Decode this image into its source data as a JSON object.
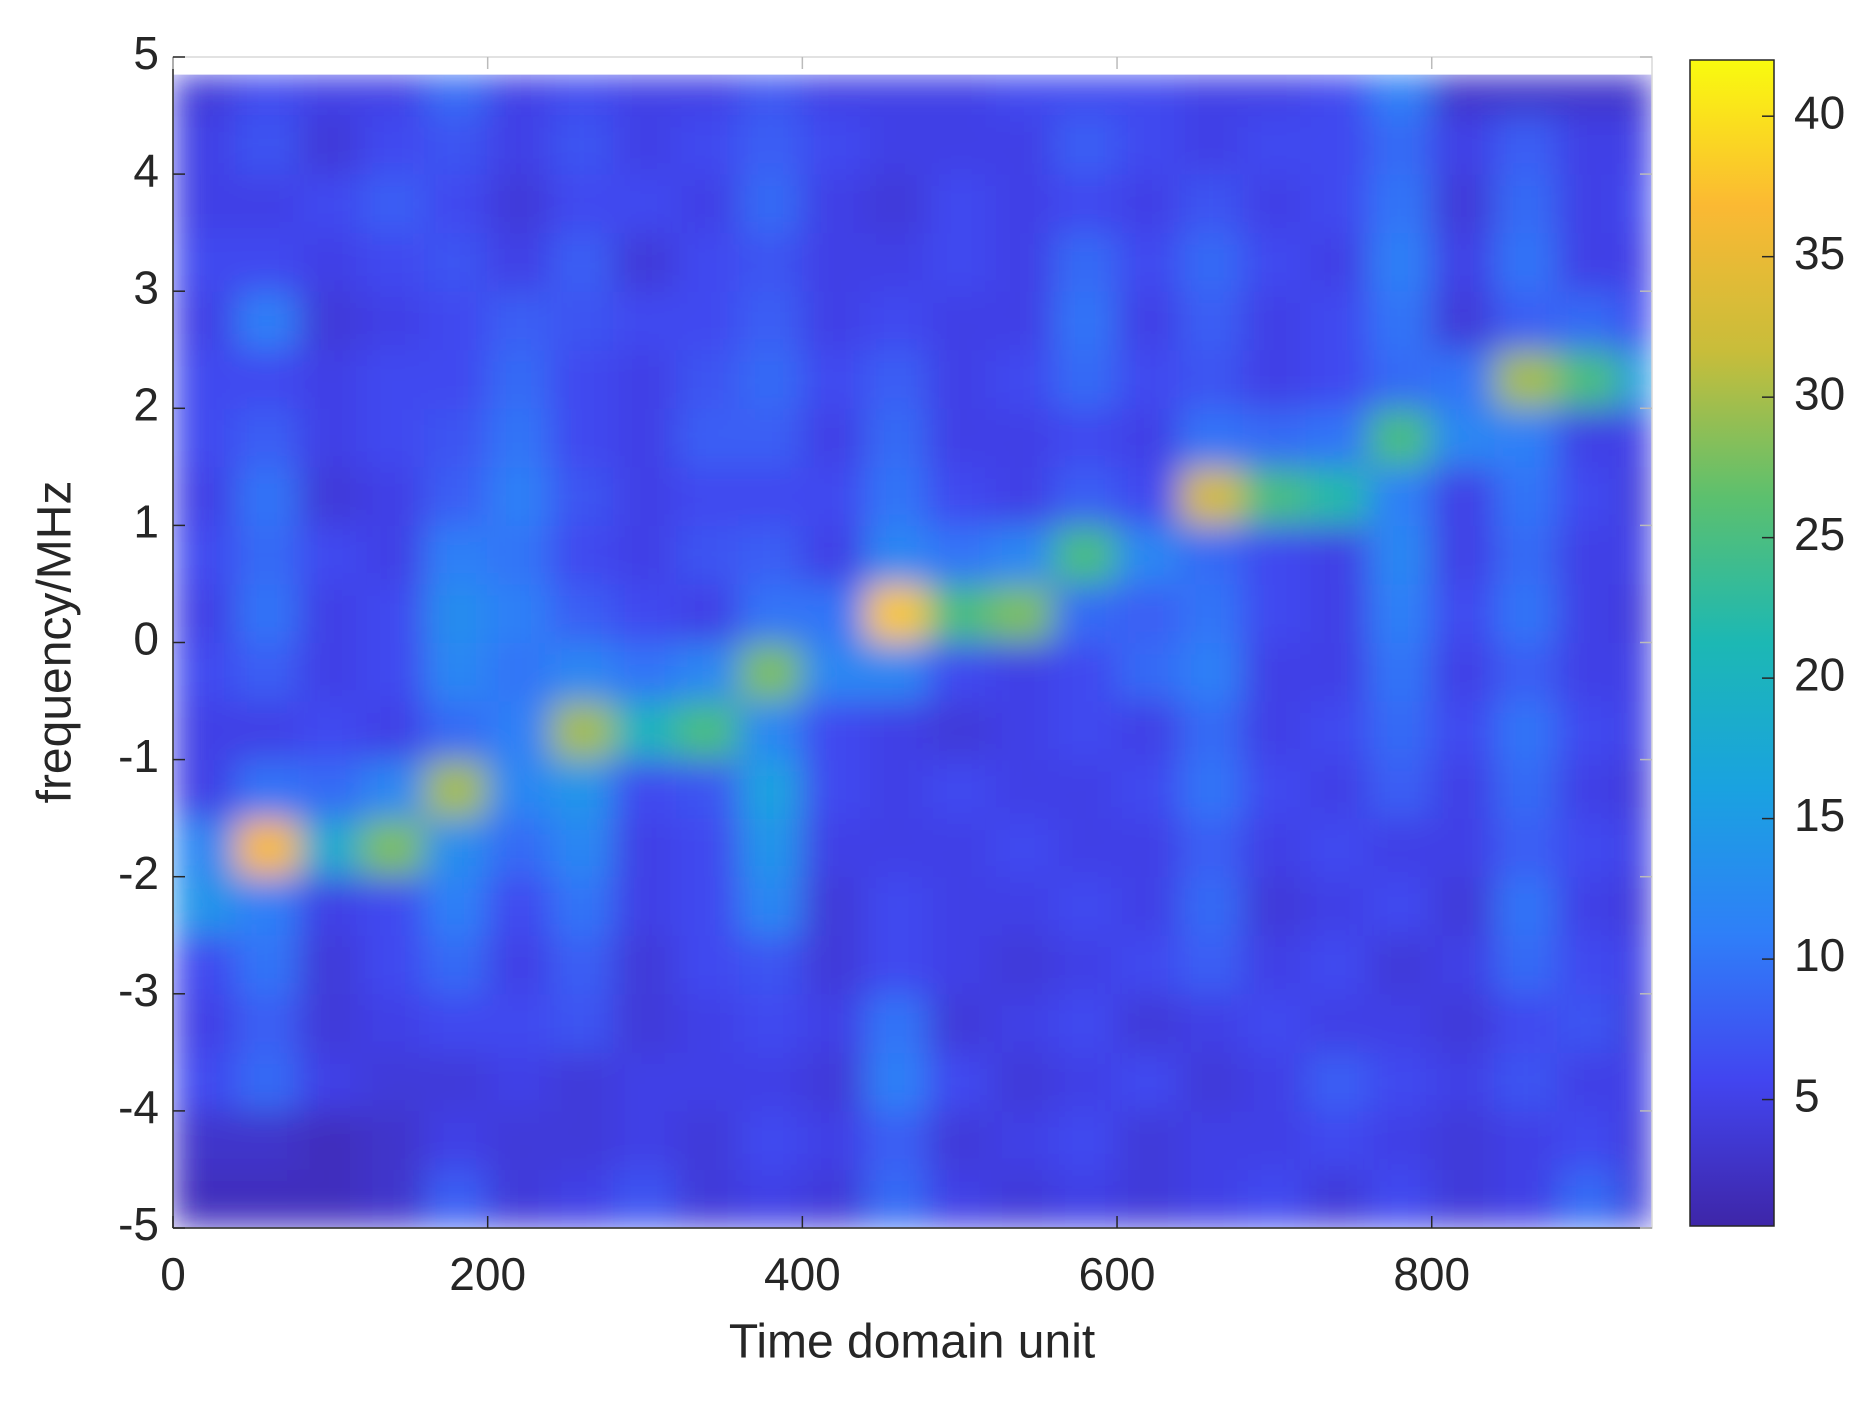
{
  "chart_data": {
    "type": "heatmap",
    "xlabel": "Time domain unit",
    "ylabel": "frequency/MHz",
    "xlim": [
      0,
      940
    ],
    "ylim": [
      -5,
      5
    ],
    "xticks": [
      0,
      200,
      400,
      600,
      800
    ],
    "yticks": [
      -5,
      -4,
      -3,
      -2,
      -1,
      0,
      1,
      2,
      3,
      4,
      5
    ],
    "xbins": [
      0,
      40,
      80,
      120,
      160,
      200,
      240,
      280,
      320,
      360,
      400,
      440,
      480,
      520,
      560,
      600,
      640,
      680,
      720,
      760,
      800,
      840,
      880,
      920,
      940
    ],
    "ybins": [
      -5,
      -4.5,
      -4,
      -3.5,
      -3,
      -2.5,
      -2,
      -1.5,
      -1,
      -0.5,
      0,
      0.5,
      1,
      1.5,
      2,
      2.5,
      3,
      3.5,
      4,
      4.5,
      4.85
    ],
    "clim": [
      0.5,
      42
    ],
    "cticks": [
      5,
      10,
      15,
      20,
      25,
      30,
      35,
      40
    ],
    "colormap": [
      "#3e26a8",
      "#4245f0",
      "#2f7ff8",
      "#1aa2e0",
      "#1cb8b4",
      "#5cc06e",
      "#c8bd3a",
      "#fbb933",
      "#f9fb0e"
    ],
    "z": [
      [
        2,
        2,
        2,
        3,
        8,
        4,
        5,
        7,
        4,
        5,
        4,
        9,
        5,
        4,
        5,
        4,
        5,
        6,
        4,
        6,
        4,
        5,
        9,
        4
      ],
      [
        3,
        3,
        2,
        3,
        5,
        4,
        4,
        5,
        4,
        6,
        5,
        8,
        4,
        5,
        6,
        4,
        5,
        5,
        6,
        5,
        4,
        5,
        6,
        4
      ],
      [
        6,
        9,
        5,
        4,
        4,
        5,
        4,
        5,
        5,
        5,
        4,
        11,
        6,
        4,
        5,
        6,
        4,
        5,
        8,
        6,
        5,
        7,
        5,
        5
      ],
      [
        5,
        8,
        4,
        5,
        6,
        6,
        7,
        4,
        5,
        6,
        5,
        10,
        4,
        5,
        6,
        4,
        5,
        6,
        5,
        5,
        4,
        6,
        7,
        4
      ],
      [
        6,
        10,
        4,
        6,
        9,
        5,
        8,
        4,
        6,
        7,
        4,
        6,
        5,
        4,
        5,
        6,
        8,
        5,
        6,
        4,
        5,
        9,
        6,
        5
      ],
      [
        14,
        11,
        5,
        6,
        11,
        6,
        10,
        5,
        6,
        12,
        4,
        6,
        5,
        5,
        6,
        5,
        9,
        4,
        5,
        6,
        4,
        10,
        5,
        4
      ],
      [
        12,
        37,
        18,
        28,
        13,
        9,
        12,
        5,
        6,
        14,
        5,
        5,
        5,
        6,
        5,
        5,
        8,
        5,
        6,
        5,
        5,
        8,
        6,
        5
      ],
      [
        5,
        10,
        9,
        12,
        30,
        12,
        14,
        6,
        7,
        16,
        6,
        5,
        6,
        5,
        5,
        6,
        10,
        6,
        5,
        8,
        5,
        9,
        5,
        4
      ],
      [
        5,
        5,
        6,
        5,
        9,
        11,
        30,
        20,
        25,
        12,
        6,
        5,
        4,
        5,
        6,
        5,
        9,
        5,
        6,
        9,
        6,
        10,
        6,
        5
      ],
      [
        6,
        8,
        5,
        6,
        12,
        10,
        12,
        10,
        12,
        28,
        12,
        12,
        6,
        5,
        6,
        9,
        11,
        5,
        5,
        10,
        5,
        8,
        5,
        5
      ],
      [
        5,
        10,
        5,
        6,
        13,
        11,
        8,
        6,
        5,
        10,
        10,
        38,
        25,
        28,
        9,
        8,
        10,
        6,
        5,
        11,
        6,
        10,
        5,
        4
      ],
      [
        6,
        9,
        6,
        5,
        11,
        10,
        6,
        5,
        7,
        8,
        5,
        12,
        10,
        12,
        25,
        12,
        9,
        6,
        5,
        12,
        5,
        9,
        5,
        5
      ],
      [
        5,
        10,
        4,
        5,
        8,
        11,
        7,
        5,
        6,
        6,
        6,
        10,
        6,
        5,
        8,
        6,
        33,
        25,
        22,
        11,
        5,
        10,
        6,
        4
      ],
      [
        6,
        8,
        5,
        6,
        7,
        10,
        6,
        5,
        8,
        8,
        5,
        9,
        5,
        5,
        6,
        5,
        10,
        9,
        10,
        25,
        12,
        11,
        5,
        5
      ],
      [
        6,
        6,
        5,
        6,
        6,
        9,
        6,
        5,
        7,
        9,
        6,
        8,
        5,
        6,
        9,
        6,
        7,
        5,
        6,
        9,
        10,
        30,
        25,
        15
      ],
      [
        5,
        11,
        4,
        5,
        6,
        8,
        7,
        6,
        6,
        8,
        5,
        6,
        5,
        5,
        10,
        5,
        8,
        5,
        6,
        10,
        4,
        8,
        9,
        6
      ],
      [
        6,
        6,
        5,
        6,
        7,
        5,
        8,
        4,
        6,
        7,
        5,
        5,
        6,
        5,
        9,
        6,
        9,
        6,
        5,
        11,
        5,
        10,
        5,
        5
      ],
      [
        5,
        5,
        6,
        8,
        6,
        4,
        6,
        6,
        5,
        9,
        5,
        4,
        6,
        5,
        6,
        5,
        7,
        5,
        6,
        10,
        4,
        9,
        5,
        6
      ],
      [
        5,
        7,
        4,
        6,
        7,
        5,
        7,
        5,
        6,
        8,
        6,
        5,
        5,
        5,
        8,
        6,
        5,
        6,
        6,
        9,
        5,
        8,
        5,
        5
      ],
      [
        4,
        6,
        5,
        5,
        9,
        5,
        6,
        5,
        5,
        7,
        5,
        5,
        5,
        6,
        6,
        6,
        5,
        5,
        6,
        11,
        3,
        3,
        3,
        3
      ]
    ]
  }
}
